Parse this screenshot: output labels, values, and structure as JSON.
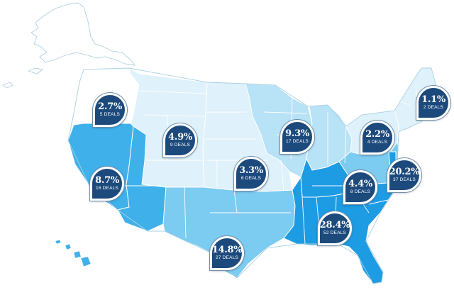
{
  "colors": {
    "lightest": "#dff1fa",
    "light": "#b8e2f5",
    "medium": "#7ccbf0",
    "dark": "#3fb0ea",
    "darkest": "#1d9be3",
    "badge": "#1d4a7c",
    "outline": "#a9cfe4"
  },
  "regions": [
    {
      "id": "northwest",
      "pct": "2.7%",
      "deals": "5 DEALS"
    },
    {
      "id": "mountain",
      "pct": "4.9%",
      "deals": "9 DEALS"
    },
    {
      "id": "california-nevada",
      "pct": "8.7%",
      "deals": "16 DEALS"
    },
    {
      "id": "plains",
      "pct": "3.3%",
      "deals": "6 DEALS"
    },
    {
      "id": "midwest",
      "pct": "9.3%",
      "deals": "17 DEALS"
    },
    {
      "id": "texas-southwest",
      "pct": "14.8%",
      "deals": "27 DEALS"
    },
    {
      "id": "northeast-interior",
      "pct": "2.2%",
      "deals": "4 DEALS"
    },
    {
      "id": "new-england",
      "pct": "1.1%",
      "deals": "2 DEALS"
    },
    {
      "id": "mid-atlantic",
      "pct": "20.2%",
      "deals": "37 DEALS"
    },
    {
      "id": "appalachia",
      "pct": "4.4%",
      "deals": "8 DEALS"
    },
    {
      "id": "southeast",
      "pct": "28.4%",
      "deals": "52 DEALS"
    }
  ]
}
